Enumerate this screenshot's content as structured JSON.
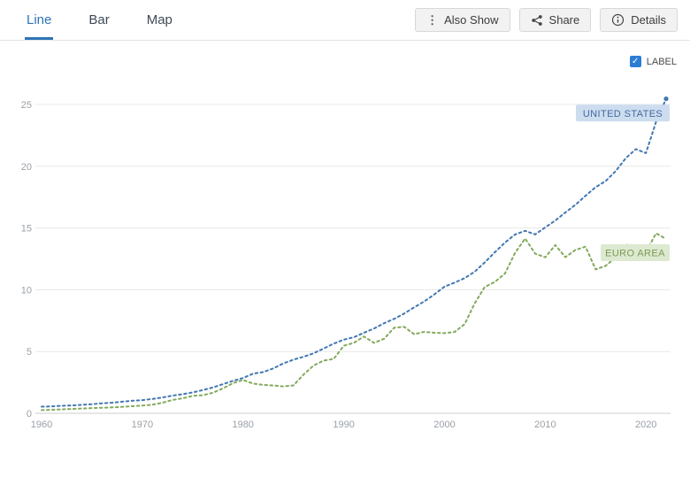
{
  "toolbar": {
    "tabs": [
      {
        "label": "Line",
        "active": true
      },
      {
        "label": "Bar",
        "active": false
      },
      {
        "label": "Map",
        "active": false
      }
    ],
    "buttons": [
      {
        "label": "Also Show",
        "icon": "kebab-menu-icon"
      },
      {
        "label": "Share",
        "icon": "share-icon"
      },
      {
        "label": "Details",
        "icon": "info-icon"
      }
    ]
  },
  "chart_controls": {
    "label_checkbox": "LABEL",
    "checked": true
  },
  "chart_data": {
    "type": "line",
    "title": "",
    "xlabel": "",
    "ylabel": "",
    "grid": true,
    "line_style": "dashed",
    "x_range": [
      1960,
      2022
    ],
    "x_ticks": [
      1960,
      1970,
      1980,
      1990,
      2000,
      2010,
      2020
    ],
    "y_ticks": [
      0,
      5,
      10,
      15,
      20,
      25
    ],
    "ylim": [
      0,
      26.5
    ],
    "series": [
      {
        "name": "UNITED STATES",
        "color": "#4277b2",
        "label_bg": "#cdddf0",
        "label_text_color": "#44699d",
        "label_anchor_value": 24.3,
        "end_dot": true,
        "values": [
          0.54,
          0.56,
          0.61,
          0.64,
          0.69,
          0.74,
          0.81,
          0.86,
          0.94,
          1.02,
          1.07,
          1.16,
          1.28,
          1.43,
          1.55,
          1.69,
          1.88,
          2.09,
          2.36,
          2.63,
          2.86,
          3.21,
          3.34,
          3.63,
          4.04,
          4.34,
          4.58,
          4.86,
          5.24,
          5.64,
          5.96,
          6.16,
          6.52,
          6.86,
          7.29,
          7.64,
          8.07,
          8.58,
          9.06,
          9.63,
          10.25,
          10.58,
          10.94,
          11.46,
          12.21,
          13.04,
          13.82,
          14.47,
          14.77,
          14.48,
          15.05,
          15.6,
          16.25,
          16.88,
          17.61,
          18.3,
          18.8,
          19.61,
          20.66,
          21.38,
          21.06,
          23.59,
          25.46
        ]
      },
      {
        "name": "EURO AREA",
        "color": "#84a95d",
        "label_bg": "#dde9d0",
        "label_text_color": "#7a9b52",
        "label_anchor_value": 13.0,
        "end_dot": false,
        "values": [
          0.26,
          0.29,
          0.32,
          0.35,
          0.39,
          0.42,
          0.45,
          0.48,
          0.52,
          0.57,
          0.62,
          0.7,
          0.85,
          1.08,
          1.21,
          1.41,
          1.47,
          1.66,
          2.02,
          2.44,
          2.7,
          2.41,
          2.3,
          2.26,
          2.18,
          2.26,
          3.13,
          3.87,
          4.27,
          4.4,
          5.47,
          5.7,
          6.22,
          5.7,
          6.03,
          6.93,
          7.0,
          6.4,
          6.6,
          6.52,
          6.49,
          6.58,
          7.22,
          8.9,
          10.23,
          10.64,
          11.31,
          12.98,
          14.15,
          12.92,
          12.63,
          13.62,
          12.64,
          13.22,
          13.49,
          11.65,
          11.94,
          12.63,
          13.67,
          13.41,
          13.05,
          14.57,
          14.11
        ]
      }
    ]
  }
}
